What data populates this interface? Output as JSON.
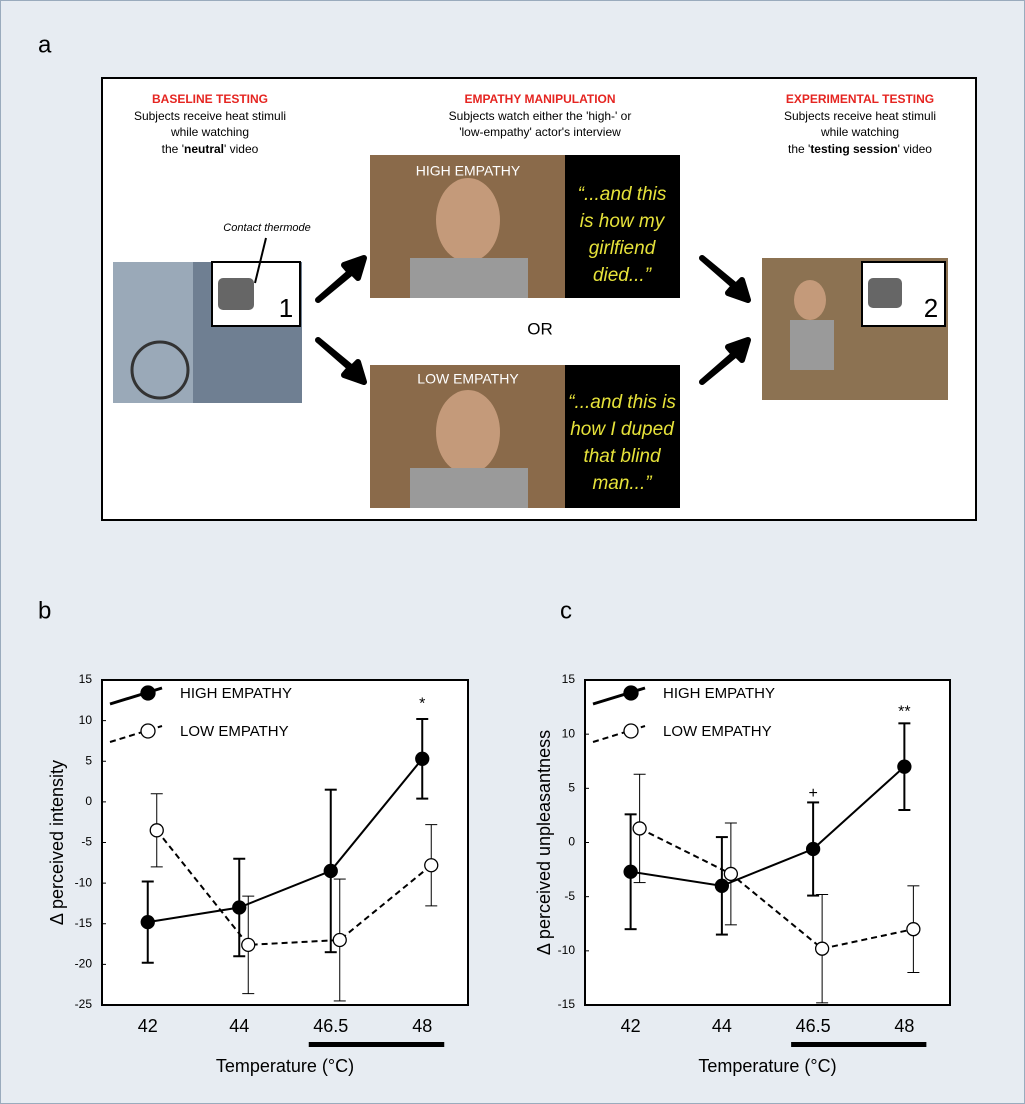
{
  "panel_a": {
    "label": "a",
    "baseline": {
      "heading": "BASELINE TESTING",
      "lines": [
        "Subjects receive heat stimuli",
        "while watching"
      ],
      "last": [
        "the '",
        "neutral",
        "' video"
      ]
    },
    "manipulation": {
      "heading": "EMPATHY MANIPULATION",
      "lines": [
        "Subjects watch either the 'high-' or",
        "'low-empathy' actor's interview"
      ]
    },
    "experimental": {
      "heading": "EXPERIMENTAL TESTING",
      "lines": [
        "Subjects receive heat stimuli",
        "while watching"
      ],
      "last": [
        "the '",
        "testing session",
        "' video"
      ]
    },
    "thermode_label": "Contact thermode",
    "step1": "1",
    "step2": "2",
    "or": "OR",
    "high": {
      "tag": "HIGH EMPATHY",
      "quote": [
        "“...and this",
        "is how my",
        "girlfiend",
        "died...”"
      ]
    },
    "low": {
      "tag": "LOW EMPATHY",
      "quote": [
        "“...and this is",
        "how I duped",
        "that blind",
        "man...”"
      ]
    }
  },
  "chart_data": [
    {
      "type": "line",
      "panel_label": "b",
      "ylabel": "Δ perceived intensity",
      "xlabel": "Temperature (°C)",
      "categories": [
        "42",
        "44",
        "46.5",
        "48"
      ],
      "ylim": [
        -25,
        15
      ],
      "yticks": [
        15,
        10,
        5,
        0,
        -5,
        -10,
        -15,
        -20,
        -25
      ],
      "series": [
        {
          "name": "HIGH EMPATHY",
          "color": "#000000",
          "dashed": false,
          "filled": true,
          "values": [
            -14.8,
            -13,
            -8.5,
            5.3
          ],
          "errors": [
            5,
            6,
            10,
            4.9
          ]
        },
        {
          "name": "LOW EMPATHY",
          "color": "#000000",
          "dashed": true,
          "filled": false,
          "values": [
            -3.5,
            -17.6,
            -17,
            -7.8
          ],
          "errors": [
            4.5,
            6,
            7.5,
            5
          ]
        }
      ],
      "annotations": [
        {
          "text": "*",
          "x": "48",
          "y": 12
        }
      ]
    },
    {
      "type": "line",
      "panel_label": "c",
      "ylabel": "Δ perceived unpleasantness",
      "xlabel": "Temperature (°C)",
      "categories": [
        "42",
        "44",
        "46.5",
        "48"
      ],
      "ylim": [
        -15,
        15
      ],
      "yticks": [
        15,
        10,
        5,
        0,
        -5,
        -10,
        -15
      ],
      "series": [
        {
          "name": "HIGH EMPATHY",
          "color": "#000000",
          "dashed": false,
          "filled": true,
          "values": [
            -2.7,
            -4,
            -0.6,
            7
          ],
          "errors": [
            5.3,
            4.5,
            4.3,
            4
          ]
        },
        {
          "name": "LOW EMPATHY",
          "color": "#000000",
          "dashed": true,
          "filled": false,
          "values": [
            1.3,
            -2.9,
            -9.8,
            -8
          ],
          "errors": [
            5,
            4.7,
            5,
            4
          ]
        }
      ],
      "annotations": [
        {
          "text": "+",
          "x": "46.5",
          "y": 4.5
        },
        {
          "text": "**",
          "x": "48",
          "y": 12
        }
      ]
    }
  ]
}
